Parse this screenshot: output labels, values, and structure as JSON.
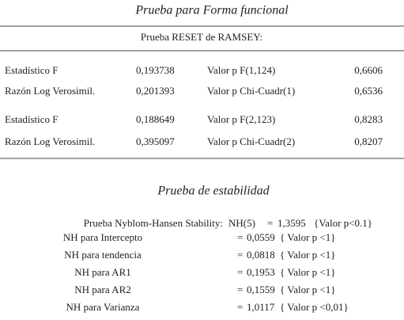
{
  "reset": {
    "title": "Prueba para Forma funcional",
    "header": "Prueba RESET de RAMSEY:",
    "rows": [
      [
        "Estadístico F",
        "0,193738",
        "Valor p F(1,124)",
        "0,6606"
      ],
      [
        "Razón Log Verosimil.",
        "0,201393",
        "Valor p Chi-Cuadr(1)",
        "0,6536"
      ],
      [
        "Estadístico F",
        "0,188649",
        "Valor p F(2,123)",
        "0,8283"
      ],
      [
        "Razón Log Verosimil.",
        "0,395097",
        "Valor p Chi-Cuadr(2)",
        "0,8207"
      ]
    ]
  },
  "stability": {
    "title": "Prueba de estabilidad",
    "main": {
      "label": "Prueba Nyblom-Hansen Stability:",
      "stat": "NH(5)",
      "eq": "=",
      "value": "1,3595",
      "pvalue": "{Valor p<0.1}"
    },
    "rows": [
      [
        "NH para Intercepto",
        "=",
        "0,0559",
        "{ Valor p <1}"
      ],
      [
        "NH para tendencia",
        "=",
        "0,0818",
        "{ Valor p <1}"
      ],
      [
        "NH para  AR1",
        "=",
        "0,1953",
        "{ Valor p <1}"
      ],
      [
        "NH para  AR2",
        "=",
        "0,1559",
        "{ Valor p <1}"
      ],
      [
        "NH para Varianza",
        "=",
        "1,0117",
        "{ Valor p <0,01}"
      ]
    ]
  }
}
